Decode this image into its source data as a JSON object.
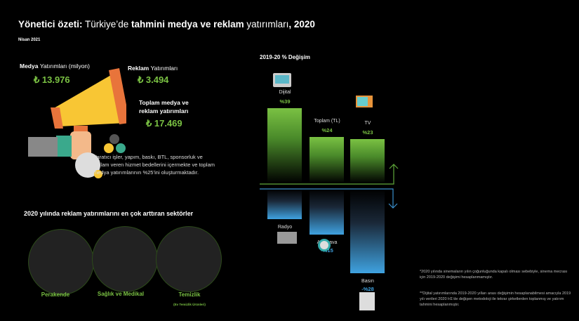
{
  "header": {
    "title_bold": "Yönetici özeti:",
    "title_rest_1": " Türkiye’de ",
    "title_bold_2": "tahmini medya ve reklam ",
    "title_rest_2": "yatırımları",
    "title_bold_3": ", 2020",
    "date": "Nisan 2021"
  },
  "stats": {
    "media_label_bold": "Medya ",
    "media_label_rest": "Yatırımları (milyon)",
    "media_value": "₺ 13.976",
    "ad_label_bold": "Reklam ",
    "ad_label_rest": "Yatırımları",
    "ad_value": "₺ 3.494",
    "total_label_1": "Toplam medya ve",
    "total_label_2": "reklam yatırımları",
    "total_value": "₺ 17.469",
    "description": "Yaratıcı işler, yapım, baskı, BTL, sponsorluk ve reklam veren hizmet bedellerini içermekte ve toplam medya yatırımlarının %25’ini oluşturmaktadır."
  },
  "sectors": {
    "title": "2020 yılında reklam yatırımlarını en çok arttıran sektörler",
    "items": [
      {
        "name": "Perakende"
      },
      {
        "name": "Sağlık ve Medikal"
      },
      {
        "name": "Temizlik",
        "sub": "(Ev Temizlik Ürünleri)"
      }
    ]
  },
  "chart_data": {
    "type": "bar",
    "title": "2019-20 % Değişim",
    "categories": [
      "Dijital",
      "Toplam (TL)",
      "TV",
      "Radyo",
      "Açıkhava",
      "Basın"
    ],
    "values": [
      39,
      24,
      23,
      -10,
      -15,
      -28
    ],
    "labels": [
      "%39",
      "%24",
      "%23",
      "-%10",
      "-%15",
      "-%28"
    ],
    "colors": {
      "positive": "#7ac143",
      "negative": "#3fa2e0"
    }
  },
  "notes": [
    "*2020 yılında sinemaların yılın çoğunluğunda kapalı olması sebebiyle, sinema mecrası için 2019-2020 değişimi hesaplanmamıştır.",
    "**Dijital yatırımlarında 2019-2020 yılları arası değişimin hesaplanabilmesi amacıyla 2019 yılı verileri 2020 H1’de değişen metodoloji ile tekrar şirketlerden toplanmış ve yatırım tahmini hesaplanmıştır."
  ]
}
